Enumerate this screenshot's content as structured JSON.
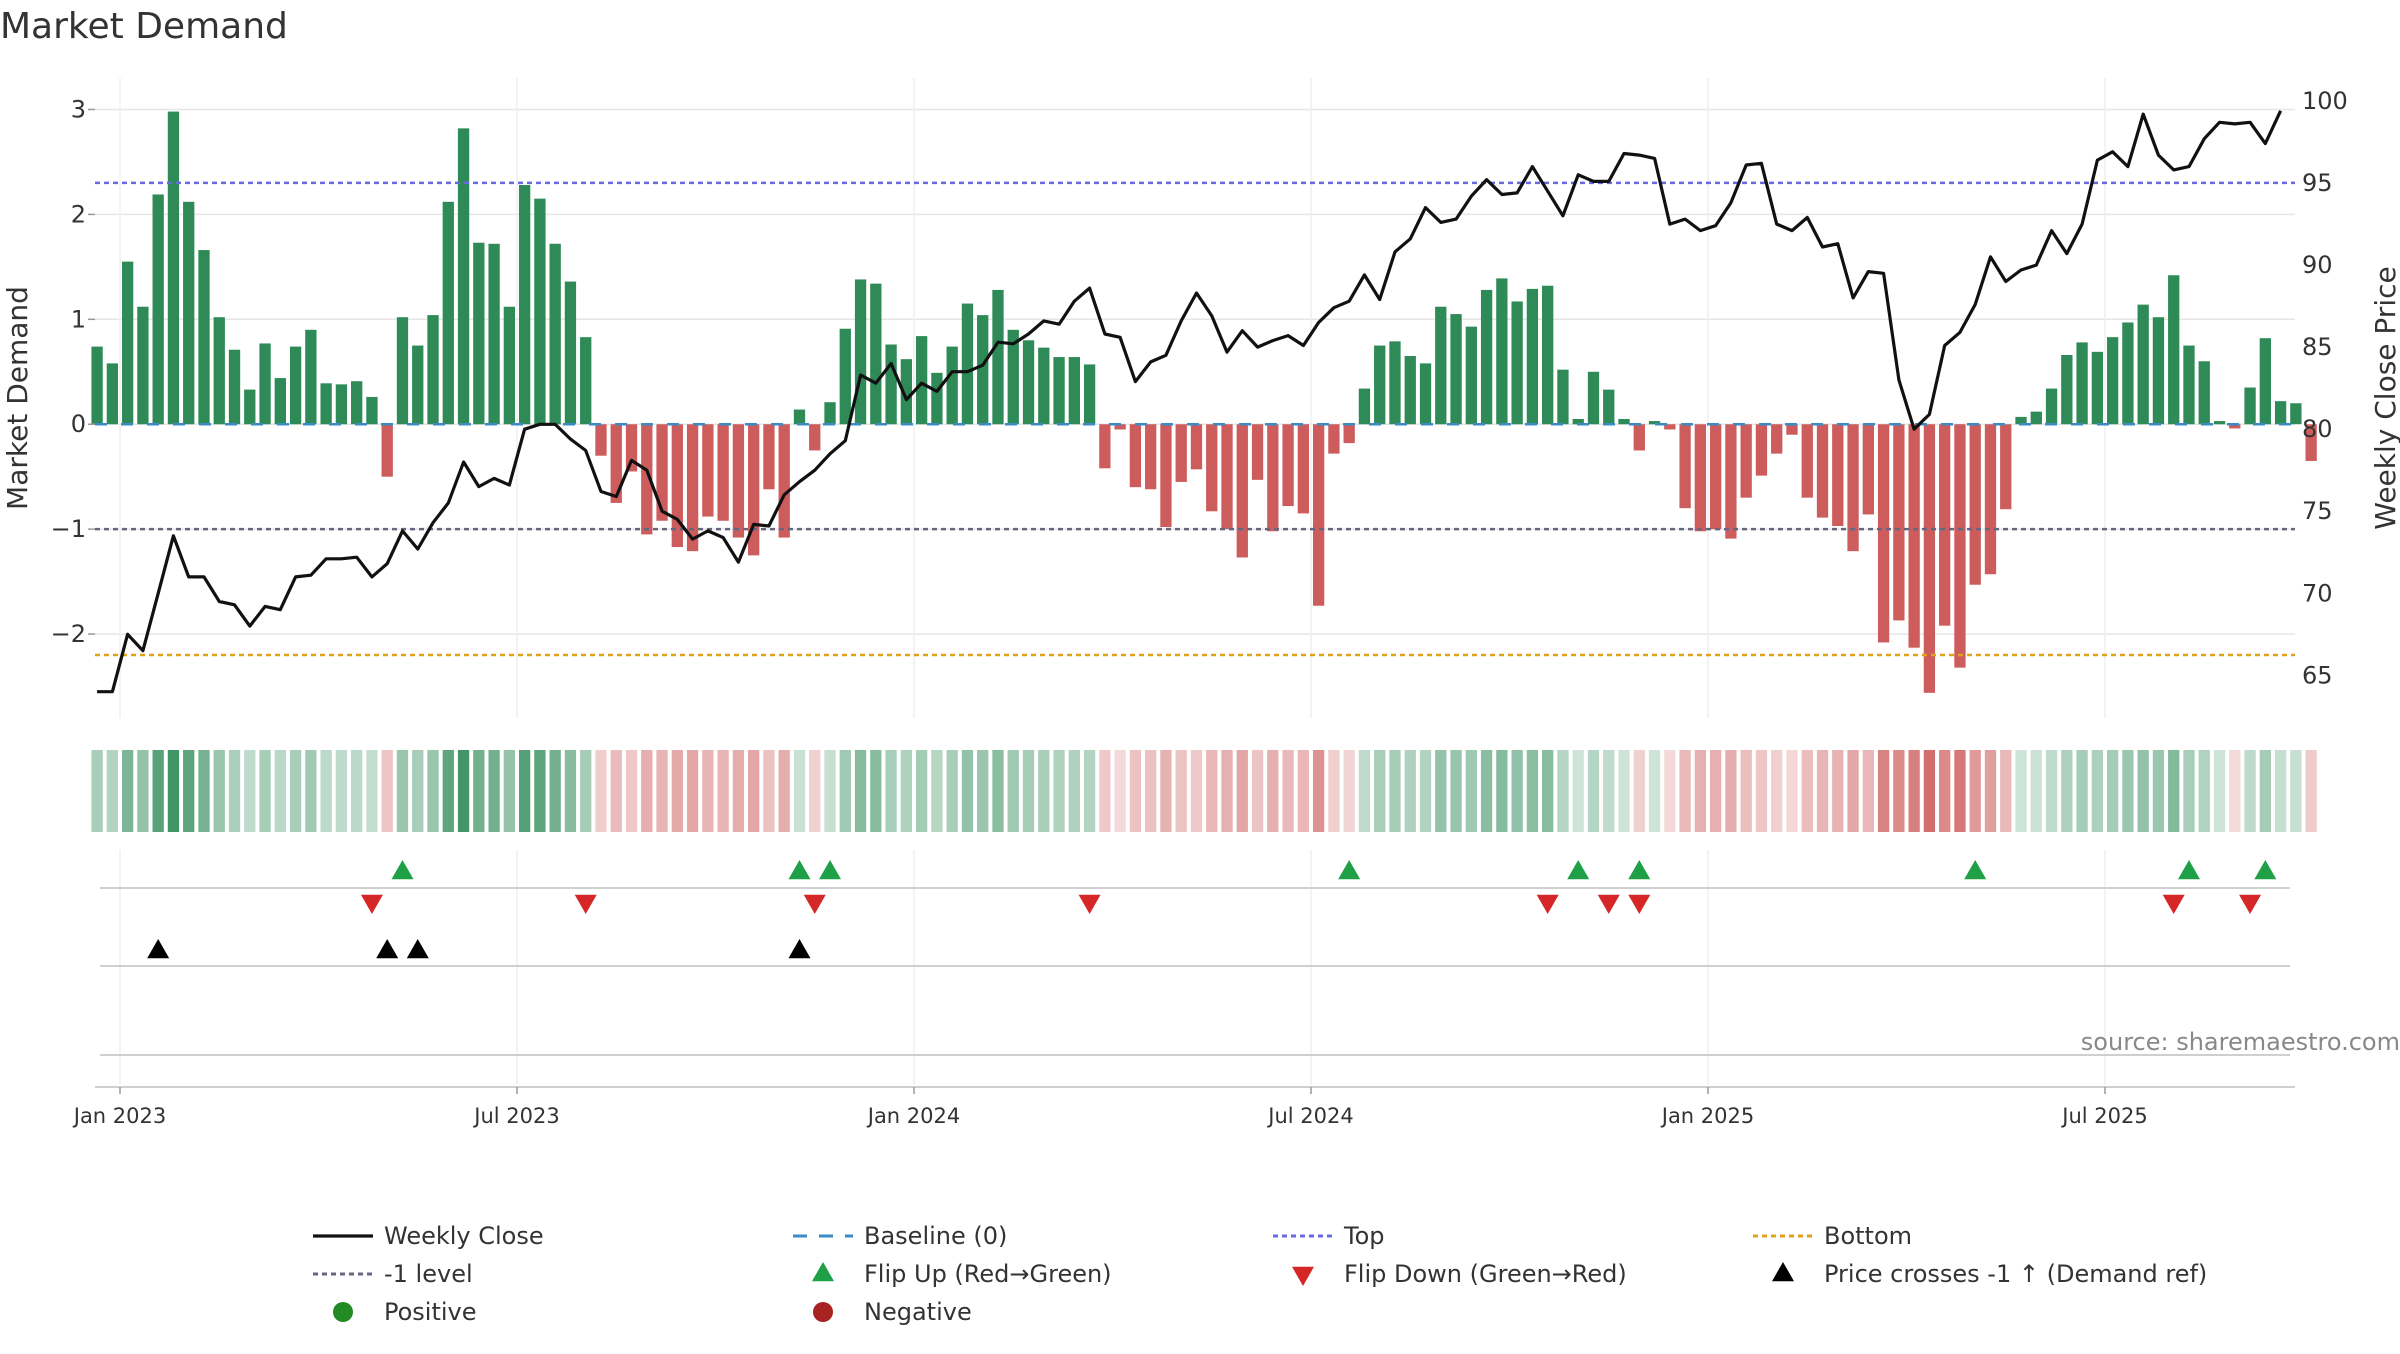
{
  "title": "Market Demand",
  "source": "source: sharemaestro.com",
  "colors": {
    "positive": "#2e8a57",
    "negative": "#cd5c5c",
    "price": "#111111",
    "baseline": "#3b8bc4",
    "top": "#6a6ae0",
    "bottom": "#e0a21a",
    "minus1": "#666680",
    "flip_up": "#1fa046",
    "flip_down": "#d62728",
    "cross": "#000000",
    "grid": "#e6e6e6"
  },
  "legend": {
    "weekly_close": "Weekly Close",
    "baseline": "Baseline (0)",
    "top": "Top",
    "bottom": "Bottom",
    "minus1": "-1 level",
    "flip_up": "Flip Up (Red→Green)",
    "flip_down": "Flip Down (Green→Red)",
    "price_cross": "Price crosses -1 ↑ (Demand ref)",
    "positive": "Positive",
    "negative": "Negative"
  },
  "chart_data": {
    "type": "bar+line",
    "title": "Market Demand",
    "ylabel_left": "Market Demand",
    "ylabel_right": "Weekly Close Price",
    "left_ylim": [
      -2.8,
      3.3
    ],
    "right_ylim": [
      62.4,
      101.4
    ],
    "left_yticks": [
      3,
      2,
      1,
      0,
      -1,
      -2
    ],
    "left_ytick_labels": [
      "3",
      "2",
      "1",
      "0",
      "−1",
      "−2"
    ],
    "right_yticks": [
      100,
      95,
      90,
      85,
      80,
      75,
      70,
      65
    ],
    "x_tick_labels": [
      "Jan 2023",
      "Jul 2023",
      "Jan 2024",
      "Jul 2024",
      "Jan 2025",
      "Jul 2025"
    ],
    "x_tick_week_index": [
      0,
      26,
      52,
      78,
      104,
      130
    ],
    "first_week_index": -1.5,
    "levels": {
      "top": 2.3,
      "bottom": -2.2,
      "minus1": -1.0,
      "baseline": 0
    },
    "demand": [
      0.74,
      0.58,
      1.55,
      1.12,
      2.19,
      2.98,
      2.12,
      1.66,
      1.02,
      0.71,
      0.33,
      0.77,
      0.44,
      0.74,
      0.9,
      0.39,
      0.38,
      0.41,
      0.26,
      -0.5,
      1.02,
      0.75,
      1.04,
      2.12,
      2.82,
      1.73,
      1.72,
      1.12,
      2.28,
      2.15,
      1.72,
      1.36,
      0.83,
      -0.3,
      -0.75,
      -0.45,
      -1.05,
      -0.92,
      -1.17,
      -1.21,
      -0.88,
      -0.92,
      -1.08,
      -1.25,
      -0.62,
      -1.08,
      0.14,
      -0.25,
      0.21,
      0.91,
      1.38,
      1.34,
      0.76,
      0.62,
      0.84,
      0.49,
      0.74,
      1.15,
      1.04,
      1.28,
      0.9,
      0.8,
      0.73,
      0.64,
      0.64,
      0.57,
      -0.42,
      -0.05,
      -0.6,
      -0.62,
      -0.98,
      -0.55,
      -0.43,
      -0.83,
      -1.0,
      -1.27,
      -0.53,
      -1.02,
      -0.78,
      -0.85,
      -1.73,
      -0.28,
      -0.18,
      0.34,
      0.75,
      0.79,
      0.65,
      0.58,
      1.12,
      1.05,
      0.93,
      1.28,
      1.39,
      1.17,
      1.29,
      1.32,
      0.52,
      0.05,
      0.5,
      0.33,
      0.05,
      -0.25,
      0.03,
      -0.05,
      -0.8,
      -1.02,
      -1.0,
      -1.09,
      -0.7,
      -0.49,
      -0.28,
      -0.1,
      -0.7,
      -0.89,
      -0.97,
      -1.21,
      -0.86,
      -2.08,
      -1.87,
      -2.13,
      -2.56,
      -1.92,
      -2.32,
      -1.53,
      -1.43,
      -0.81,
      0.07,
      0.12,
      0.34,
      0.66,
      0.78,
      0.69,
      0.83,
      0.97,
      1.14,
      1.02,
      1.42,
      0.75,
      0.6,
      0.03,
      -0.04,
      0.35,
      0.82,
      0.22,
      0.2,
      -0.35
    ],
    "weekly_close": [
      64.0,
      64.0,
      67.5,
      66.5,
      70.0,
      73.5,
      71.0,
      71.0,
      69.5,
      69.3,
      68.0,
      69.2,
      69.0,
      71.0,
      71.1,
      72.1,
      72.1,
      72.2,
      71.0,
      71.8,
      73.8,
      72.7,
      74.3,
      75.5,
      78.0,
      76.5,
      77.0,
      76.6,
      80.0,
      80.3,
      80.3,
      79.4,
      78.7,
      76.2,
      75.9,
      78.1,
      77.5,
      75.0,
      74.5,
      73.3,
      73.8,
      73.4,
      71.9,
      74.2,
      74.1,
      76.0,
      76.8,
      77.5,
      78.5,
      79.3,
      83.3,
      82.8,
      84.0,
      81.8,
      82.8,
      82.3,
      83.5,
      83.5,
      83.9,
      85.3,
      85.2,
      85.8,
      86.6,
      86.4,
      87.8,
      88.6,
      85.8,
      85.6,
      82.9,
      84.1,
      84.5,
      86.6,
      88.3,
      86.9,
      84.7,
      86.0,
      85.0,
      85.4,
      85.7,
      85.1,
      86.5,
      87.4,
      87.8,
      89.4,
      87.9,
      90.8,
      91.6,
      93.5,
      92.6,
      92.8,
      94.2,
      95.2,
      94.3,
      94.4,
      96.0,
      94.5,
      93.0,
      95.5,
      95.1,
      95.1,
      96.8,
      96.7,
      96.5,
      92.5,
      92.8,
      92.1,
      92.4,
      93.8,
      96.1,
      96.2,
      92.5,
      92.1,
      92.9,
      91.1,
      91.3,
      88.0,
      89.6,
      89.5,
      83.0,
      80.0,
      80.9,
      85.1,
      85.9,
      87.6,
      90.5,
      89.0,
      89.7,
      90.0,
      92.1,
      90.7,
      92.5,
      96.4,
      96.9,
      96.0,
      99.2,
      96.7,
      95.8,
      96.0,
      97.7,
      98.7,
      98.6,
      98.7,
      97.4,
      99.4
    ],
    "flip_up_weeks": [
      18.5,
      44.5,
      46.5,
      80.5,
      95.5,
      99.5,
      121.5,
      135.5,
      140.5
    ],
    "flip_down_weeks": [
      16.5,
      30.5,
      45.5,
      63.5,
      93.5,
      97.5,
      99.5,
      134.5,
      139.5
    ],
    "price_cross_weeks": [
      2.5,
      17.5,
      19.5,
      44.5
    ]
  }
}
